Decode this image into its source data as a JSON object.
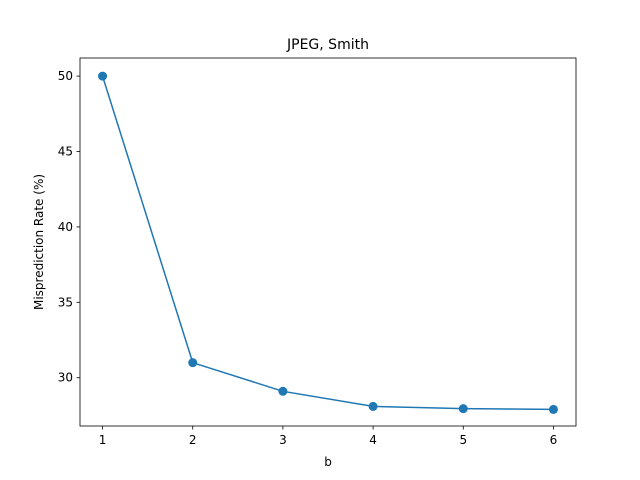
{
  "chart_data": {
    "type": "line",
    "title": "JPEG, Smith",
    "xlabel": "b",
    "ylabel": "Misprediction Rate (%)",
    "x": [
      1,
      2,
      3,
      4,
      5,
      6
    ],
    "series": [
      {
        "values": [
          50.0,
          31.0,
          29.1,
          28.1,
          27.95,
          27.9
        ],
        "color": "#1f77b4",
        "marker": "circle"
      }
    ],
    "xlim": [
      0.75,
      6.25
    ],
    "ylim": [
      26.8,
      51.2
    ],
    "xticks": [
      1,
      2,
      3,
      4,
      5,
      6
    ],
    "yticks": [
      30,
      35,
      40,
      45,
      50
    ],
    "grid": false,
    "legend": "none"
  }
}
